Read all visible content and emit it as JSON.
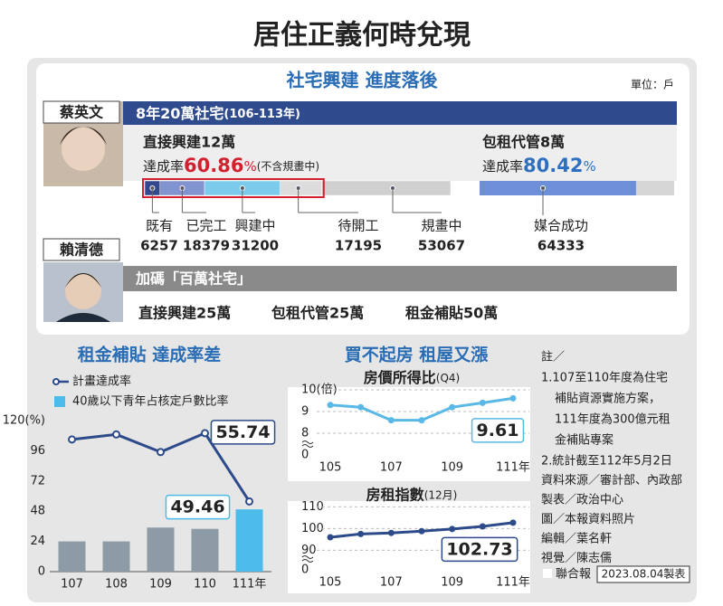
{
  "title": "居住正義何時兌現",
  "policy": {
    "heading": "社宅興建  進度落後",
    "unit": "單位：戶",
    "tsai": {
      "name": "蔡英文",
      "banner": "8年20萬社宅",
      "banner_years": "(106-113年)",
      "direct": "直接興建12萬",
      "rate_label": "達成率",
      "rate": 60.86,
      "rate_unit": "%",
      "rate_note": "(不含規畫中)",
      "stages": [
        {
          "label": "既有",
          "value": 6257,
          "color": "#33498f"
        },
        {
          "label": "已完工",
          "value": 18379,
          "color": "#8293d1"
        },
        {
          "label": "興建中",
          "value": 31200,
          "color": "#7ccbec"
        },
        {
          "label": "待開工",
          "value": 17195,
          "color": "#dcdcdc"
        },
        {
          "label": "規畫中",
          "value": 53067,
          "color": "#d0d0d0"
        }
      ],
      "lease": "包租代管8萬",
      "lease_rate_label": "達成率",
      "lease_rate": 80.42,
      "lease_rate_unit": "%",
      "lease_stage": {
        "label": "媒合成功",
        "value": 64333,
        "color": "#6d8fd8"
      }
    },
    "lai": {
      "name": "賴清德",
      "banner": "加碼「百萬社宅」",
      "items": [
        "直接興建25萬",
        "包租代管25萬",
        "租金補貼50萬"
      ]
    }
  },
  "sections": {
    "left": "租金補貼  達成率差",
    "middle": "買不起房  租屋又漲"
  },
  "chart_data": [
    {
      "type": "combo",
      "categories": [
        "107",
        "108",
        "109",
        "110",
        "111年"
      ],
      "ylim": [
        0,
        120
      ],
      "yticks": [
        0,
        24,
        48,
        72,
        96,
        {
          "value": 120,
          "label": "120(%)"
        }
      ],
      "series": [
        {
          "name": "計畫達成率",
          "type": "line",
          "color": "#2d4a8a",
          "values": [
            105,
            109,
            95,
            110,
            55.74
          ],
          "value_labels": [
            null,
            null,
            null,
            null,
            "55.74"
          ]
        },
        {
          "name": "40歲以下青年占核定戶數比率",
          "type": "bar",
          "color": "#4cbbea",
          "colors": [
            "#8c9ba6",
            "#8c9ba6",
            "#8c9ba6",
            "#8c9ba6",
            "#4cbbea"
          ],
          "values": [
            24,
            24,
            35,
            34,
            49.46
          ],
          "value_labels": [
            null,
            null,
            null,
            null,
            "49.46"
          ]
        }
      ]
    },
    {
      "type": "line",
      "title": "房價所得比",
      "subtitle": "(Q4)",
      "categories": [
        "105",
        null,
        "107",
        null,
        "109",
        null,
        "111年"
      ],
      "ylim": [
        7.0,
        10.2
      ],
      "yticks": [
        8,
        9,
        {
          "value": 10,
          "label": "10(倍)"
        }
      ],
      "axis_break_label": "0",
      "grid": true,
      "series": [
        {
          "color": "#59b8e6",
          "values": [
            9.3,
            9.2,
            8.6,
            8.6,
            9.2,
            9.4,
            9.61
          ],
          "value_labels": [
            null,
            null,
            null,
            null,
            null,
            null,
            "9.61"
          ]
        }
      ]
    },
    {
      "type": "line",
      "title": "房租指數",
      "subtitle": "(12月)",
      "categories": [
        "105",
        null,
        "107",
        null,
        "109",
        null,
        "111年"
      ],
      "ylim": [
        81,
        112
      ],
      "yticks": [
        90,
        100,
        110
      ],
      "axis_break_label": "0",
      "grid": true,
      "series": [
        {
          "color": "#2d4a8a",
          "values": [
            96,
            97.5,
            98,
            98.8,
            99.8,
            101,
            102.73
          ],
          "value_labels": [
            null,
            null,
            null,
            null,
            null,
            null,
            "102.73"
          ]
        }
      ]
    }
  ],
  "notes": {
    "label": "註／",
    "items": [
      [
        "1.107至110年度為住宅",
        "補貼資源實施方案，",
        "111年度為300億元租",
        "金補貼專案"
      ],
      [
        "2.統計截至112年5月2日"
      ]
    ],
    "credits": [
      "資料來源／審計部、內政部",
      "製表／政治中心",
      "圖／本報資料照片",
      "編輯／葉名軒",
      "視覺／陳志儒"
    ]
  },
  "footer": {
    "paper": "聯合報",
    "date": "2023.08.04製表"
  }
}
